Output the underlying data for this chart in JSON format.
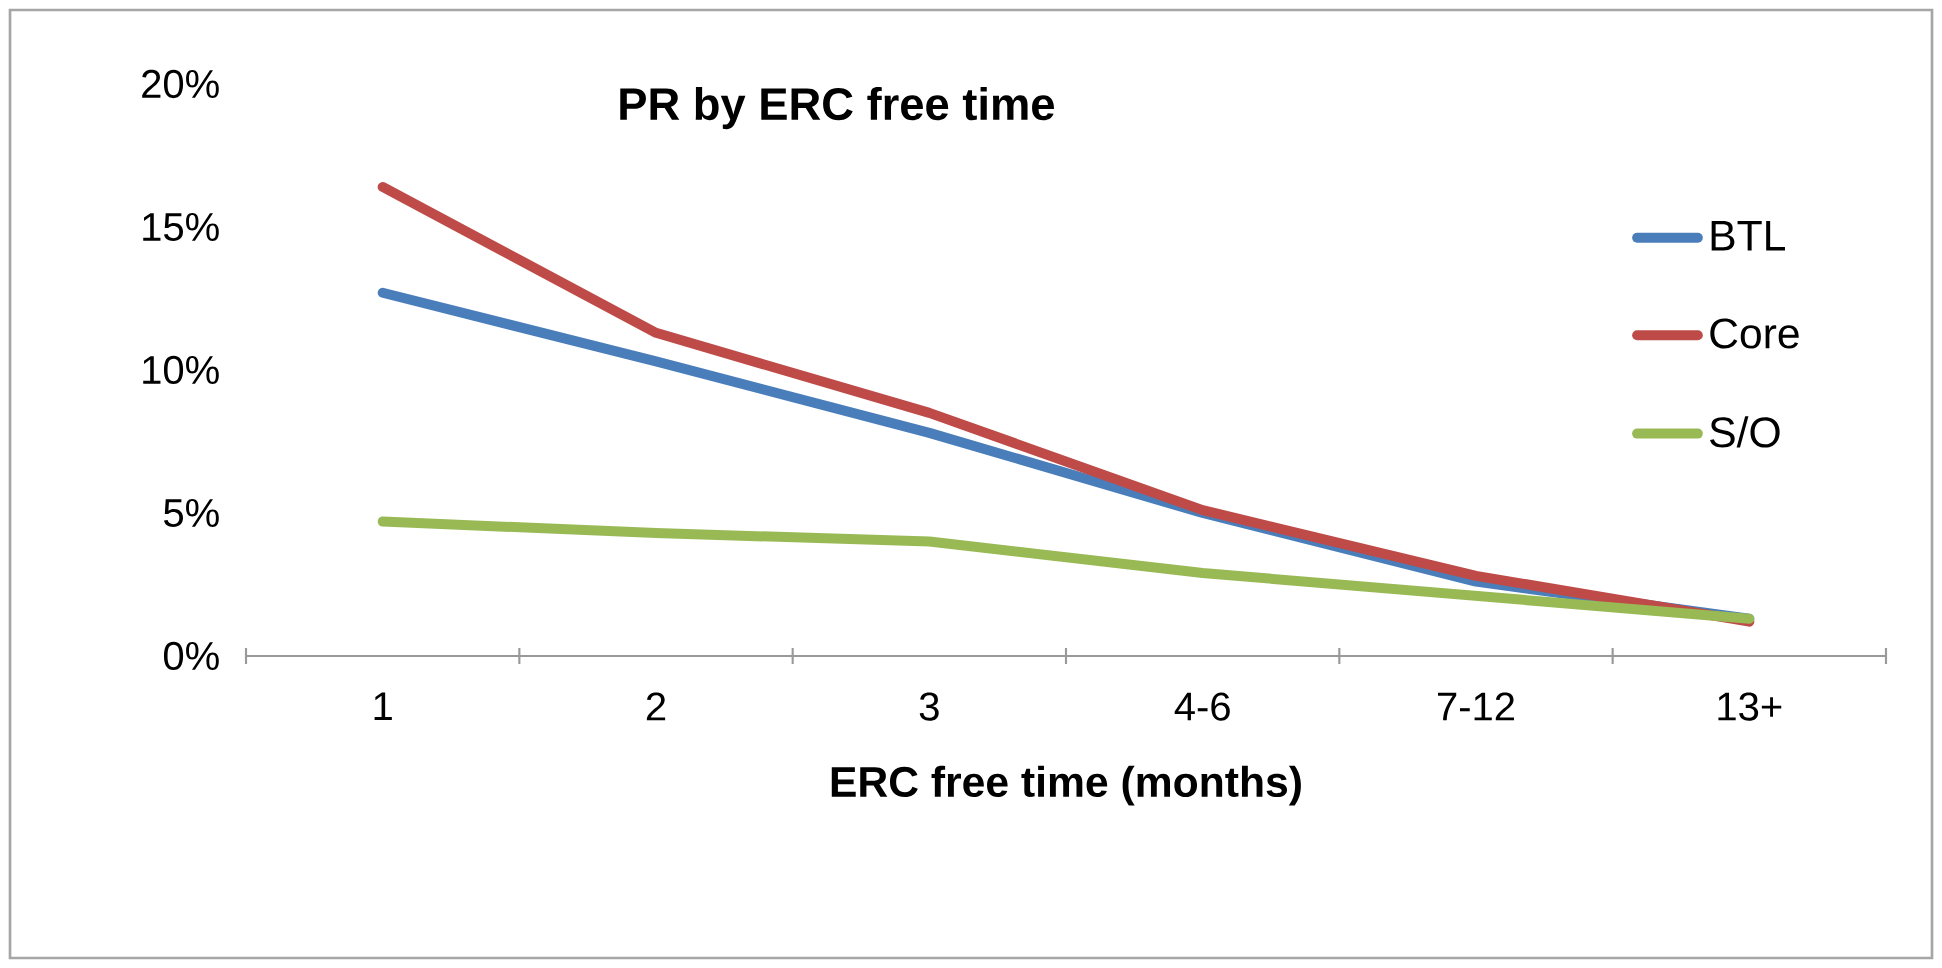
{
  "chart_data": {
    "type": "line",
    "title": "PR by ERC free time",
    "xlabel": "ERC free time (months)",
    "categories": [
      "1",
      "2",
      "3",
      "4-6",
      "7-12",
      "13+"
    ],
    "series": [
      {
        "name": "BTL",
        "color": "#4a7ebb",
        "values": [
          12.7,
          10.3,
          7.8,
          5.0,
          2.6,
          1.3
        ]
      },
      {
        "name": "Core",
        "color": "#be4b48",
        "values": [
          16.4,
          11.3,
          8.5,
          5.1,
          2.8,
          1.2
        ]
      },
      {
        "name": "S/O",
        "color": "#98b954",
        "values": [
          4.7,
          4.3,
          4.0,
          2.9,
          2.1,
          1.3
        ]
      }
    ],
    "ylim": [
      0,
      20
    ],
    "yticks": [
      {
        "value": 0,
        "label": "0%"
      },
      {
        "value": 5,
        "label": "5%"
      },
      {
        "value": 10,
        "label": "10%"
      },
      {
        "value": 15,
        "label": "15%"
      },
      {
        "value": 20,
        "label": "20%"
      }
    ],
    "legend": "right",
    "grid": false,
    "marker": "none",
    "line_style": "solid"
  }
}
